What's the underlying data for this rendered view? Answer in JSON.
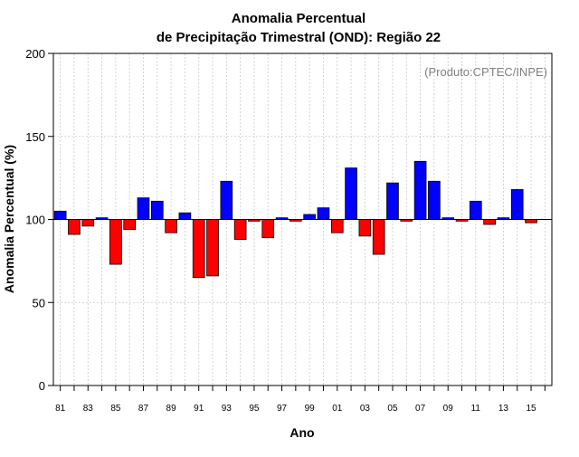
{
  "chart_data": {
    "type": "bar",
    "title": "Anomalia Percentual",
    "subtitle": "de Precipitação Trimestral (OND): Região 22",
    "xlabel": "Ano",
    "ylabel": "Anomalia Percentual (%)",
    "annotation": "(Produto:CPTEC/INPE)",
    "ylim": [
      0,
      200
    ],
    "yticks": [
      0,
      50,
      100,
      150,
      200
    ],
    "baseline": 100,
    "grid": true,
    "colors": {
      "above": "#0000ff",
      "below": "#ff0000",
      "edge": "#000000",
      "grid": "#c8c8c8"
    },
    "categories": [
      "81",
      "82",
      "83",
      "84",
      "85",
      "86",
      "87",
      "88",
      "89",
      "90",
      "91",
      "92",
      "93",
      "94",
      "95",
      "96",
      "97",
      "98",
      "99",
      "00",
      "01",
      "02",
      "03",
      "04",
      "05",
      "06",
      "07",
      "08",
      "09",
      "10",
      "11",
      "12",
      "13",
      "14",
      "15",
      "16"
    ],
    "xtick_labels": [
      "81",
      "83",
      "85",
      "87",
      "89",
      "91",
      "93",
      "95",
      "97",
      "99",
      "01",
      "03",
      "05",
      "07",
      "09",
      "11",
      "13",
      "15"
    ],
    "values": [
      105,
      91,
      96,
      101,
      73,
      94,
      113,
      111,
      92,
      104,
      65,
      66,
      123,
      88,
      99,
      89,
      101,
      99,
      103,
      107,
      92,
      131,
      90,
      79,
      122,
      99,
      135,
      123,
      101,
      99,
      111,
      97,
      101,
      118,
      98,
      null
    ]
  }
}
